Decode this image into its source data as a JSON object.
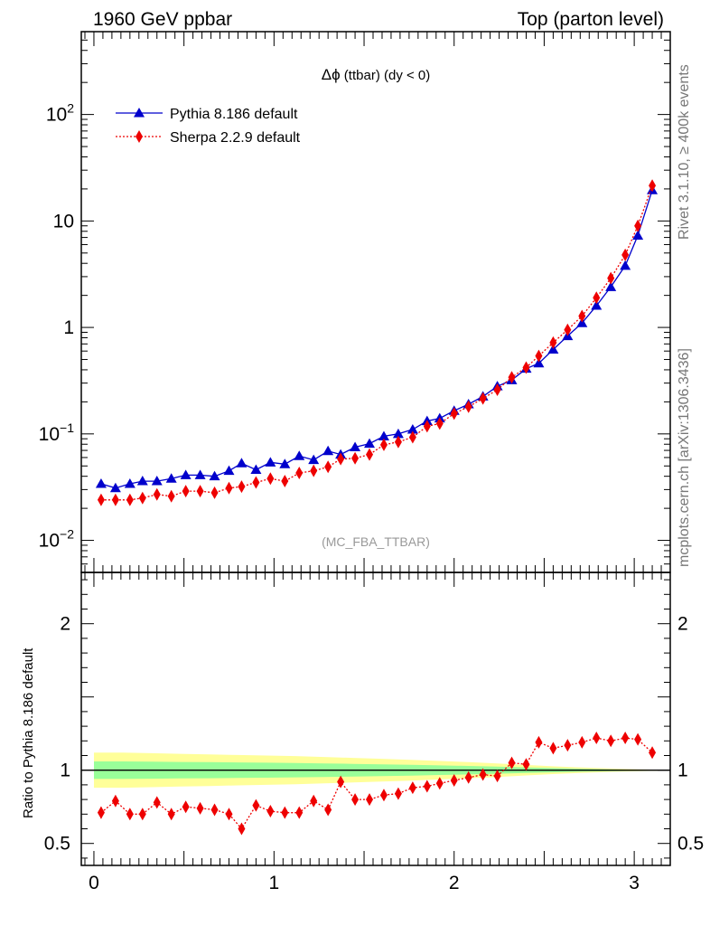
{
  "header": {
    "left": "1960 GeV ppbar",
    "right": "Top (parton level)"
  },
  "side_labels": {
    "upper": "Rivet 3.1.10, ≥ 400k events",
    "lower": "mcplots.cern.ch [arXiv:1306.3436]"
  },
  "chart_data": [
    {
      "type": "line",
      "title_symbol": "Δϕ",
      "title_text": " (ttbar) (dy < 0)",
      "watermark": "(MC_FBA_TTBAR)",
      "yscale": "log",
      "ylim": [
        0.005,
        600
      ],
      "xlim": [
        -0.07,
        3.2
      ],
      "ytick_labels": [
        {
          "value": 0.01,
          "base": "10",
          "exp": "−2"
        },
        {
          "value": 0.1,
          "base": "10",
          "exp": "−1"
        },
        {
          "value": 1,
          "base": "1",
          "exp": ""
        },
        {
          "value": 10,
          "base": "10",
          "exp": ""
        },
        {
          "value": 100,
          "base": "10",
          "exp": "2"
        }
      ],
      "legend_placement": "top-left",
      "x": [
        0.04,
        0.12,
        0.2,
        0.27,
        0.35,
        0.43,
        0.51,
        0.59,
        0.67,
        0.75,
        0.82,
        0.9,
        0.98,
        1.06,
        1.14,
        1.22,
        1.3,
        1.37,
        1.45,
        1.53,
        1.61,
        1.69,
        1.77,
        1.85,
        1.92,
        2.0,
        2.08,
        2.16,
        2.24,
        2.32,
        2.4,
        2.47,
        2.55,
        2.63,
        2.71,
        2.79,
        2.87,
        2.95,
        3.02,
        3.1
      ],
      "series": [
        {
          "name": "Pythia 8.186 default",
          "color": "#0000cc",
          "marker": "triangle",
          "linestyle": "solid",
          "values": [
            0.034,
            0.031,
            0.034,
            0.036,
            0.036,
            0.038,
            0.041,
            0.041,
            0.04,
            0.045,
            0.053,
            0.046,
            0.054,
            0.052,
            0.062,
            0.057,
            0.069,
            0.064,
            0.075,
            0.081,
            0.095,
            0.1,
            0.11,
            0.132,
            0.14,
            0.165,
            0.19,
            0.225,
            0.28,
            0.32,
            0.41,
            0.46,
            0.62,
            0.83,
            1.1,
            1.6,
            2.4,
            3.8,
            7.3,
            19.5
          ]
        },
        {
          "name": "Sherpa 2.2.9 default",
          "color": "#ee0000",
          "marker": "diamond",
          "linestyle": "dotted",
          "values": [
            0.024,
            0.024,
            0.024,
            0.025,
            0.027,
            0.026,
            0.029,
            0.029,
            0.028,
            0.031,
            0.032,
            0.035,
            0.038,
            0.036,
            0.043,
            0.045,
            0.049,
            0.058,
            0.059,
            0.064,
            0.079,
            0.084,
            0.093,
            0.118,
            0.125,
            0.155,
            0.18,
            0.215,
            0.26,
            0.34,
            0.42,
            0.54,
            0.72,
            0.95,
            1.28,
            1.9,
            2.9,
            4.8,
            9.0,
            21.5
          ]
        }
      ]
    },
    {
      "type": "line",
      "ylabel": "Ratio to Pythia 8.186 default",
      "ylim": [
        0.35,
        2.35
      ],
      "xlim": [
        -0.07,
        3.2
      ],
      "yticks": [
        0.5,
        1,
        2
      ],
      "xticks": [
        0,
        1,
        2,
        3
      ],
      "reference_line": 1,
      "band_colors": {
        "inner": "#99ff99",
        "outer": "#ffff99"
      },
      "band_x": [
        0.0,
        0.16,
        0.32,
        0.48,
        0.64,
        0.8,
        0.96,
        1.12,
        1.28,
        1.44,
        1.6,
        1.76,
        1.92,
        2.08,
        2.24,
        2.4,
        2.56,
        2.72,
        2.88,
        3.04,
        3.14
      ],
      "band_inner": [
        0.06,
        0.06,
        0.058,
        0.056,
        0.055,
        0.053,
        0.051,
        0.049,
        0.046,
        0.043,
        0.04,
        0.037,
        0.033,
        0.029,
        0.024,
        0.019,
        0.014,
        0.01,
        0.006,
        0.003,
        0.002
      ],
      "band_outer": [
        0.12,
        0.12,
        0.116,
        0.112,
        0.108,
        0.104,
        0.1,
        0.096,
        0.09,
        0.084,
        0.078,
        0.071,
        0.063,
        0.055,
        0.046,
        0.036,
        0.026,
        0.018,
        0.011,
        0.006,
        0.004
      ],
      "series": [
        {
          "name": "Sherpa 2.2.9 default",
          "color": "#ee0000",
          "marker": "diamond",
          "linestyle": "dotted",
          "values": [
            0.71,
            0.79,
            0.7,
            0.7,
            0.78,
            0.7,
            0.75,
            0.74,
            0.73,
            0.7,
            0.6,
            0.76,
            0.72,
            0.71,
            0.71,
            0.79,
            0.73,
            0.92,
            0.8,
            0.8,
            0.83,
            0.84,
            0.88,
            0.89,
            0.91,
            0.93,
            0.95,
            0.97,
            0.96,
            1.05,
            1.04,
            1.19,
            1.15,
            1.17,
            1.19,
            1.22,
            1.2,
            1.22,
            1.21,
            1.12
          ],
          "errors": [
            0.04,
            0.03,
            0.03,
            0.03,
            0.03,
            0.03,
            0.03,
            0.03,
            0.03,
            0.03,
            0.03,
            0.03,
            0.03,
            0.03,
            0.03,
            0.03,
            0.03,
            0.02,
            0.02,
            0.02,
            0.02,
            0.02,
            0.02,
            0.02,
            0.02,
            0.02,
            0.02,
            0.02,
            0.02,
            0.02,
            0.02,
            0.02,
            0.02,
            0.02,
            0.02,
            0.02,
            0.02,
            0.02,
            0.02,
            0.02
          ]
        }
      ]
    }
  ]
}
